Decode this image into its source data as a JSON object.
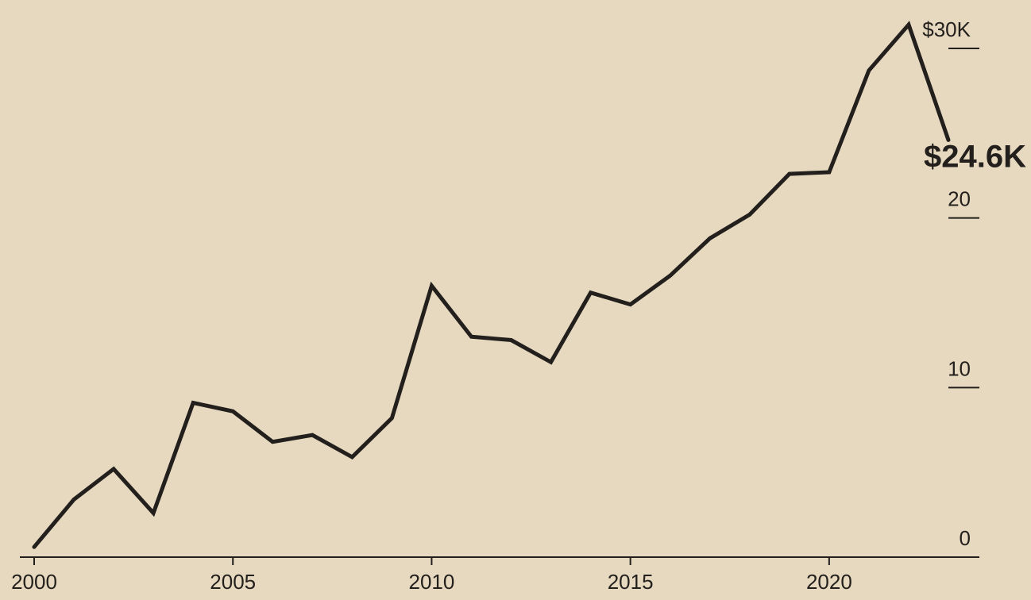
{
  "chart_data": {
    "type": "line",
    "x": [
      2000,
      2001,
      2002,
      2003,
      2004,
      2005,
      2006,
      2007,
      2008,
      2009,
      2010,
      2011,
      2012,
      2013,
      2014,
      2015,
      2016,
      2017,
      2018,
      2019,
      2020,
      2021,
      2022,
      2023
    ],
    "values": [
      0.6,
      3.4,
      5.2,
      2.6,
      9.1,
      8.6,
      6.8,
      7.2,
      5.9,
      8.2,
      16.0,
      13.0,
      12.8,
      11.5,
      15.6,
      14.9,
      16.6,
      18.8,
      20.2,
      22.6,
      22.7,
      28.7,
      31.4,
      24.6
    ],
    "value_labels": [
      null,
      null,
      null,
      null,
      null,
      null,
      null,
      null,
      null,
      null,
      null,
      null,
      null,
      null,
      null,
      null,
      null,
      null,
      null,
      null,
      null,
      null,
      null,
      "$24.6K"
    ],
    "color": "#231f1c",
    "xlim": [
      2000,
      2023
    ],
    "xticks": [
      2000,
      2005,
      2010,
      2015,
      2020
    ],
    "ylim": [
      0,
      30
    ],
    "yticks": [
      0,
      10,
      20,
      {
        "value": 30,
        "label": "$30K"
      }
    ],
    "grid": false
  }
}
